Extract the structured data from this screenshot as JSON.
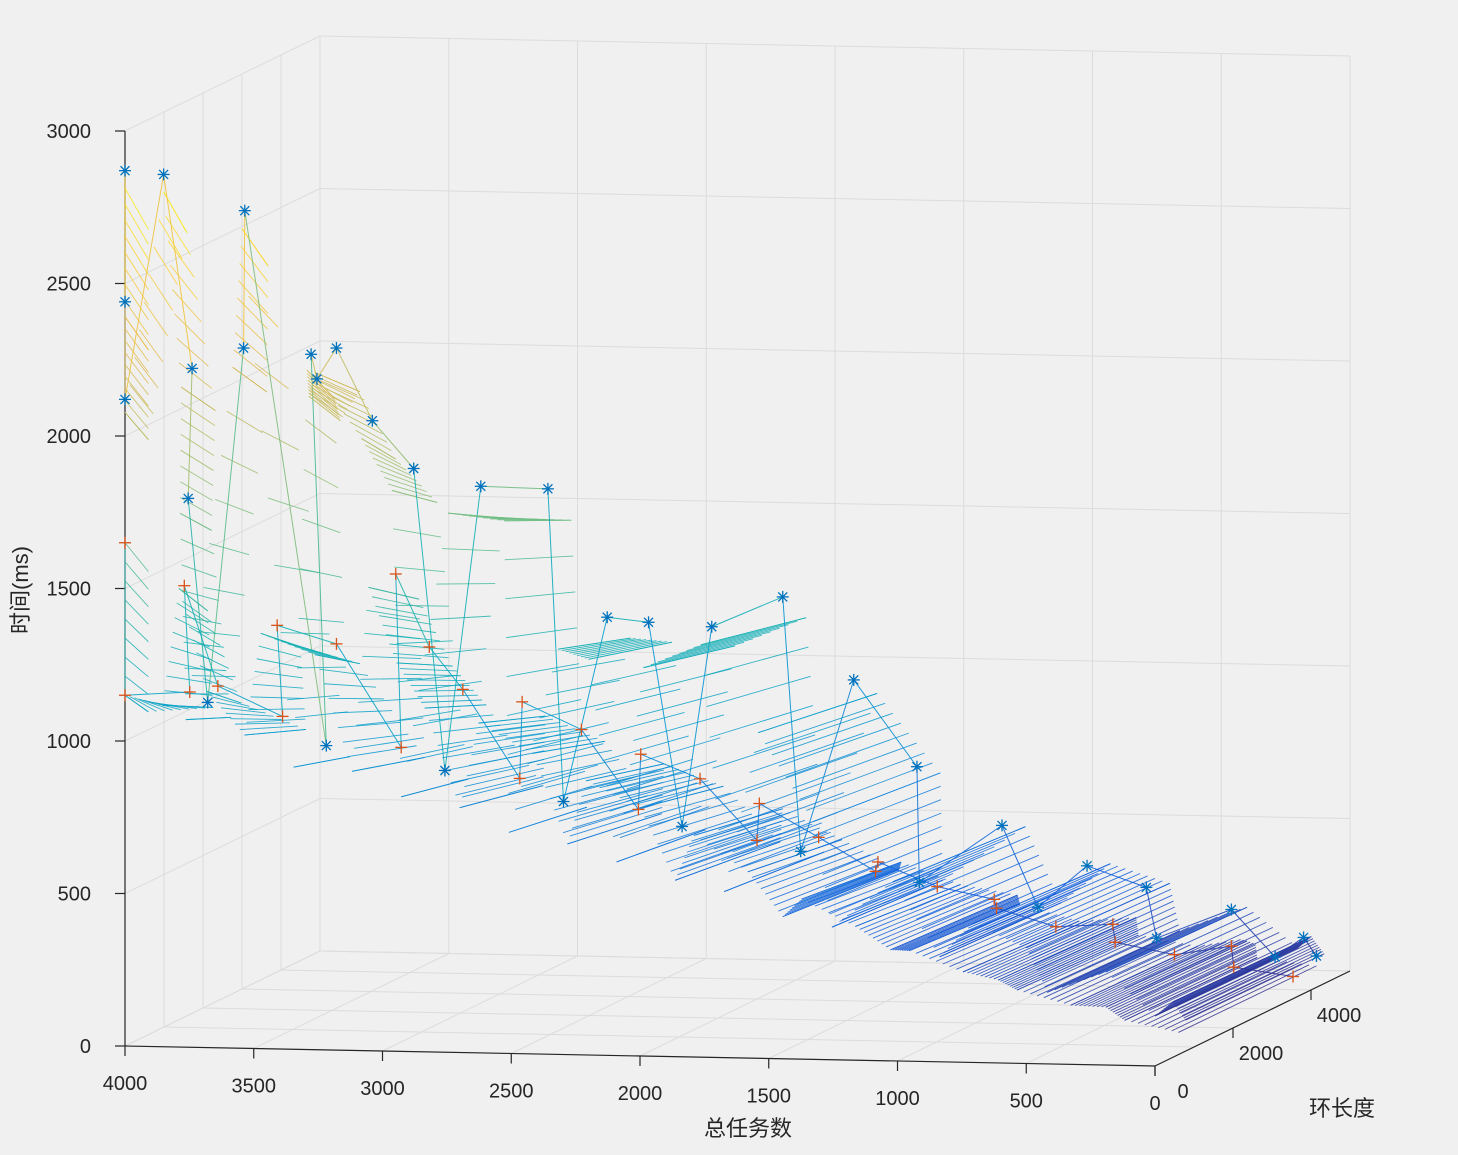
{
  "chart_data": {
    "type": "surface3d",
    "title": "",
    "xlabel": "总任务数",
    "ylabel": "环长度",
    "zlabel": "时间(ms)",
    "x_ticks": [
      "4000",
      "3500",
      "3000",
      "2500",
      "2000",
      "1500",
      "1000",
      "500",
      "0"
    ],
    "y_ticks": [
      "0",
      "2000",
      "4000"
    ],
    "z_ticks": [
      "0",
      "500",
      "1000",
      "1500",
      "2000",
      "2500",
      "3000"
    ],
    "xlim": [
      0,
      4000
    ],
    "ylim": [
      0,
      5000
    ],
    "zlim": [
      0,
      3000
    ],
    "grid": true,
    "colormap": "parula",
    "series": [
      {
        "marker": "*",
        "color": "#0072BD",
        "points": [
          [
            4000,
            0,
            2870
          ],
          [
            3850,
            0,
            2860
          ],
          [
            4000,
            0,
            2440
          ],
          [
            4000,
            0,
            2120
          ],
          [
            3800,
            400,
            2200
          ],
          [
            3800,
            300,
            1780
          ],
          [
            3600,
            400,
            2270
          ],
          [
            3550,
            100,
            2740
          ],
          [
            3300,
            150,
            2270
          ],
          [
            3300,
            300,
            2180
          ],
          [
            3100,
            400,
            2040
          ],
          [
            3300,
            800,
            2250
          ],
          [
            3000,
            800,
            1860
          ],
          [
            2800,
            1200,
            1780
          ],
          [
            2600,
            1600,
            1750
          ],
          [
            2400,
            1800,
            1320
          ],
          [
            2300,
            2200,
            1280
          ],
          [
            2100,
            2500,
            1250
          ],
          [
            1900,
            3000,
            1320
          ],
          [
            1700,
            3500,
            1020
          ],
          [
            1500,
            3800,
            720
          ],
          [
            1200,
            4000,
            520
          ],
          [
            900,
            4200,
            380
          ],
          [
            700,
            4400,
            300
          ],
          [
            400,
            4600,
            220
          ],
          [
            150,
            4800,
            120
          ],
          [
            100,
            4800,
            60
          ],
          [
            3800,
            800,
            1080
          ],
          [
            3400,
            1200,
            920
          ],
          [
            3000,
            1600,
            820
          ],
          [
            2600,
            2000,
            700
          ],
          [
            2200,
            2400,
            600
          ],
          [
            1800,
            2800,
            500
          ],
          [
            1400,
            3200,
            380
          ],
          [
            1000,
            3600,
            280
          ],
          [
            600,
            4000,
            160
          ],
          [
            200,
            4400,
            80
          ]
        ]
      },
      {
        "marker": "+",
        "color": "#D95319",
        "points": [
          [
            4000,
            0,
            1650
          ],
          [
            4000,
            0,
            1150
          ],
          [
            3800,
            200,
            1500
          ],
          [
            3700,
            400,
            1160
          ],
          [
            3500,
            600,
            1350
          ],
          [
            3300,
            800,
            1280
          ],
          [
            3100,
            1000,
            1500
          ],
          [
            3000,
            1200,
            1250
          ],
          [
            2900,
            1400,
            1100
          ],
          [
            2700,
            1600,
            1050
          ],
          [
            2500,
            1800,
            950
          ],
          [
            2300,
            2000,
            860
          ],
          [
            2100,
            2200,
            770
          ],
          [
            1900,
            2400,
            680
          ],
          [
            1700,
            2600,
            560
          ],
          [
            1500,
            2800,
            470
          ],
          [
            1300,
            3000,
            380
          ],
          [
            1100,
            3200,
            300
          ],
          [
            900,
            3400,
            230
          ],
          [
            700,
            3600,
            170
          ],
          [
            500,
            3800,
            120
          ],
          [
            300,
            4000,
            70
          ],
          [
            100,
            4200,
            30
          ],
          [
            3900,
            1000,
            1100
          ],
          [
            3600,
            1400,
            1000
          ],
          [
            3200,
            1800,
            880
          ],
          [
            2800,
            2200,
            760
          ],
          [
            2400,
            2600,
            640
          ],
          [
            2000,
            3000,
            520
          ],
          [
            1600,
            3400,
            400
          ],
          [
            1200,
            3800,
            290
          ],
          [
            800,
            4200,
            190
          ],
          [
            400,
            4600,
            100
          ]
        ]
      }
    ]
  }
}
